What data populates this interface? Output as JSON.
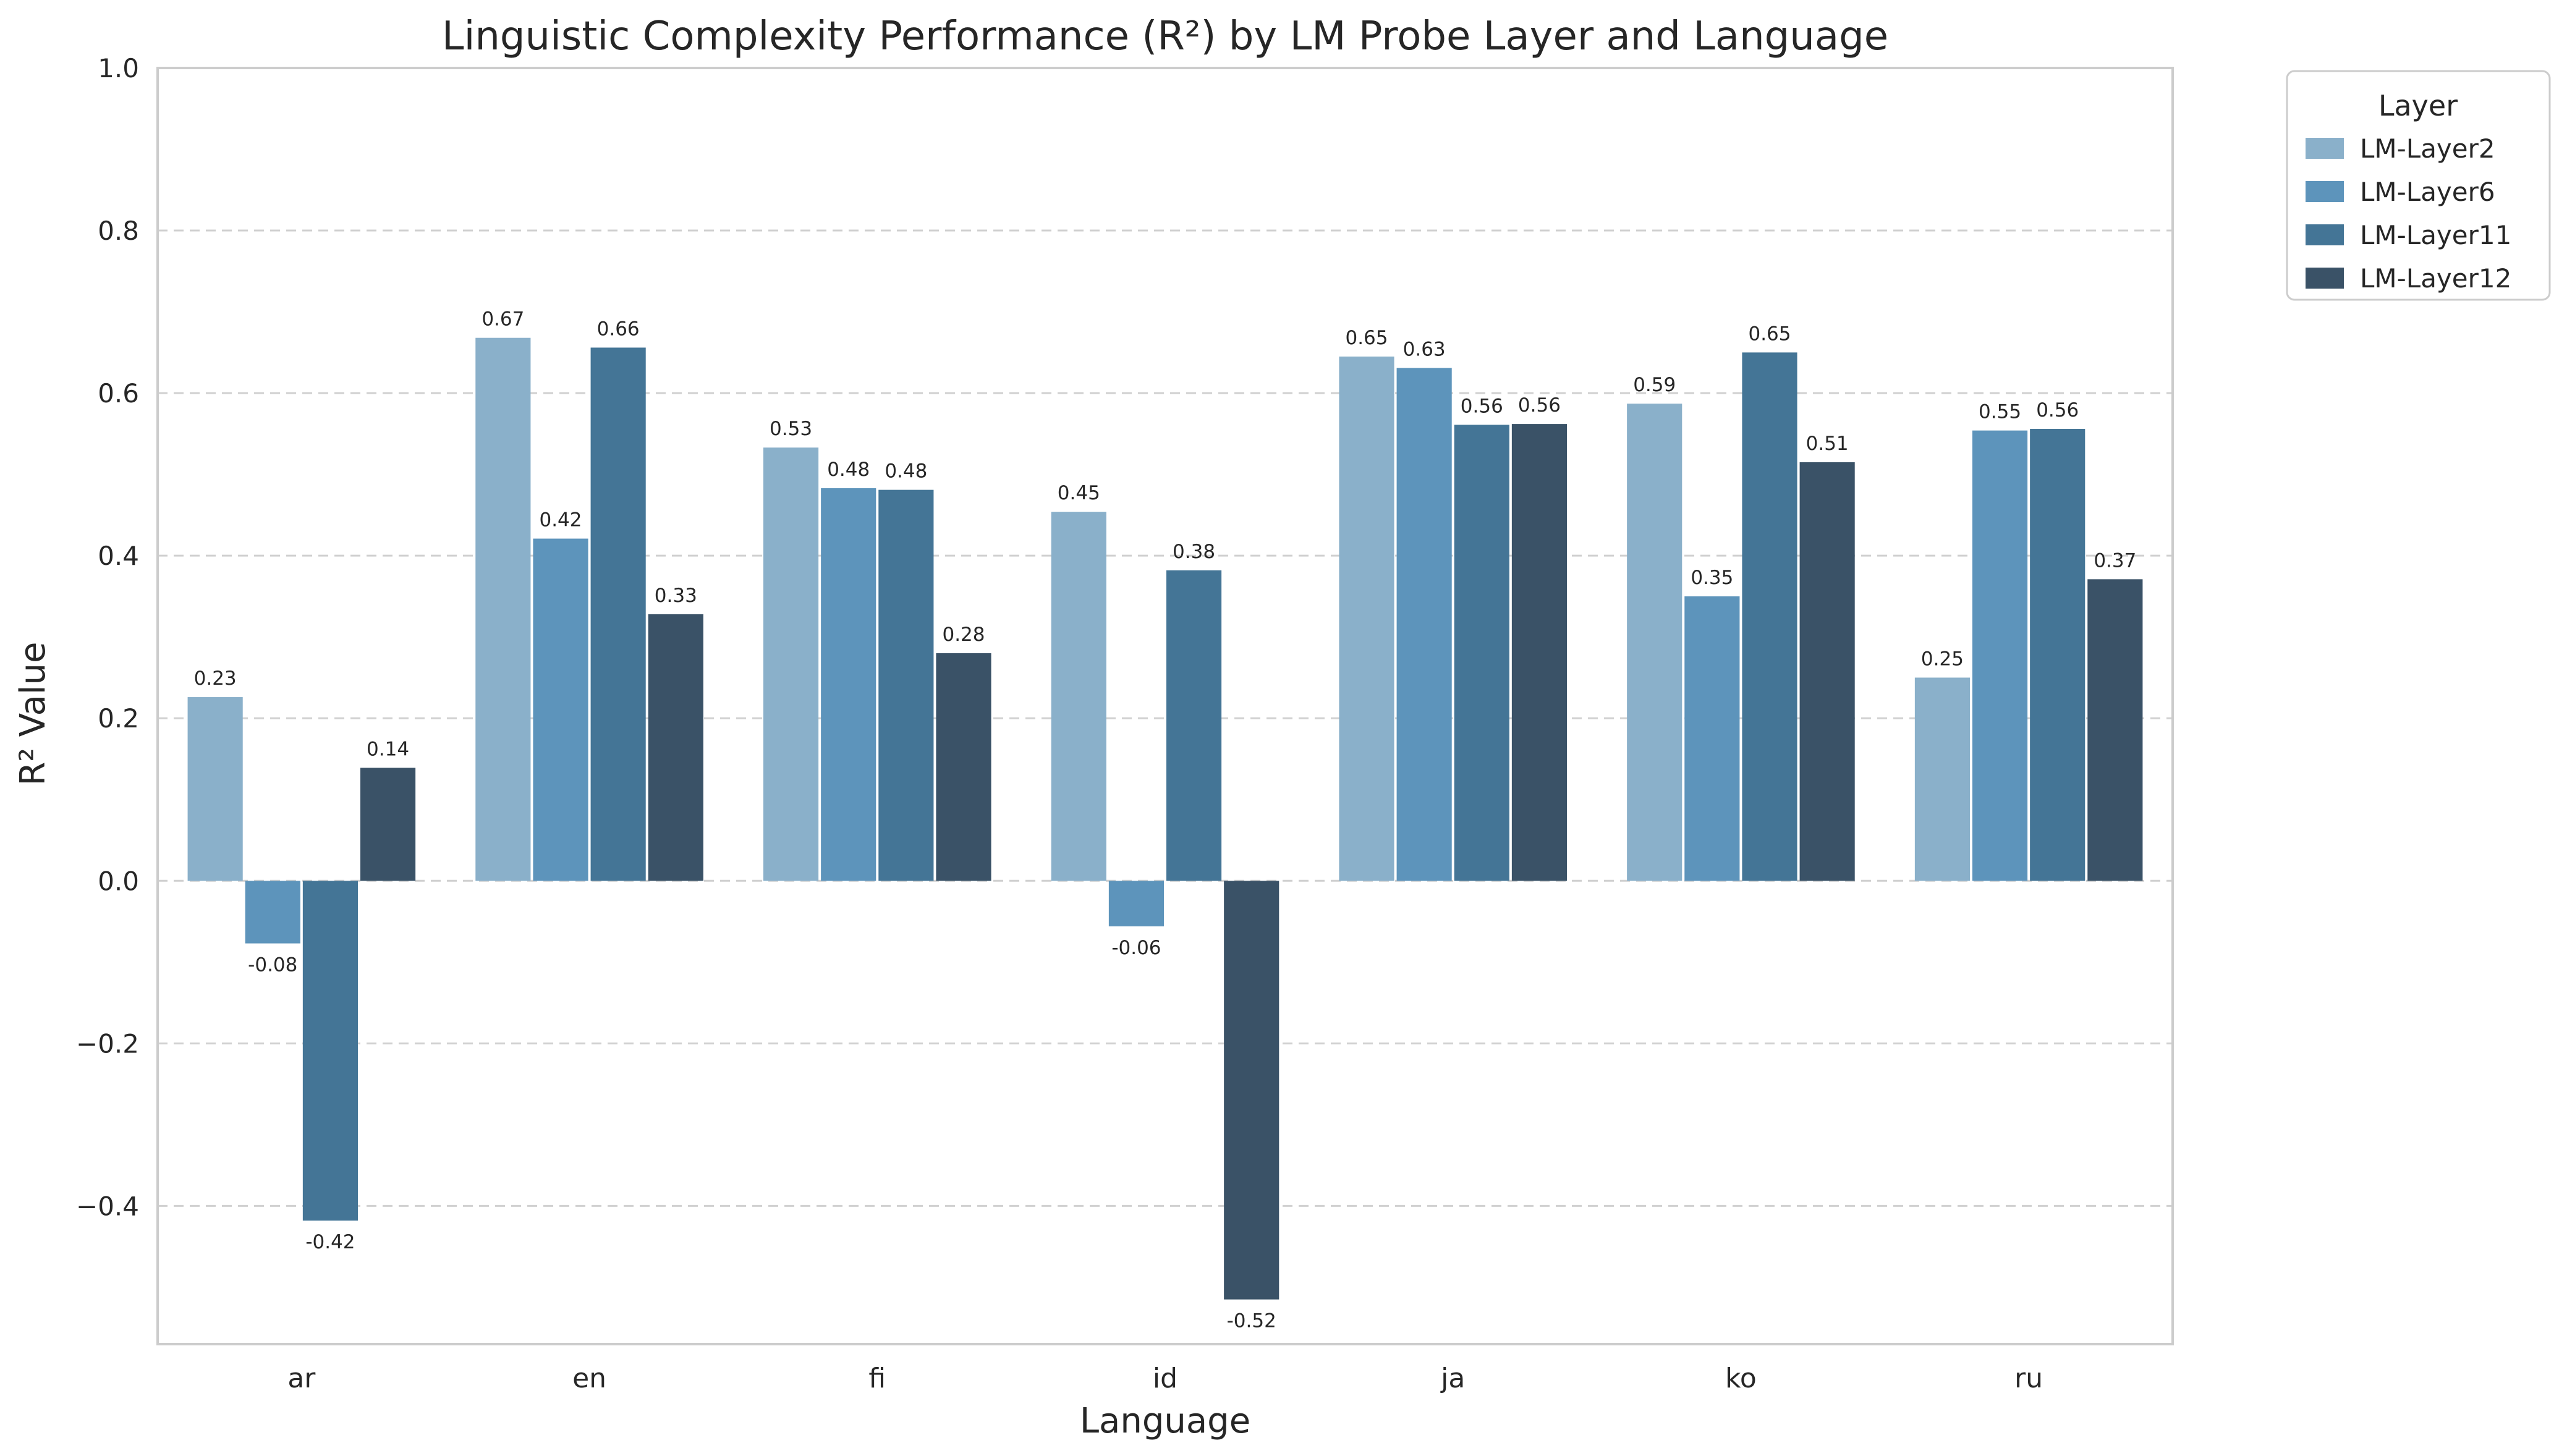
{
  "chart_data": {
    "type": "bar",
    "title": "Linguistic Complexity Performance (R²) by LM Probe Layer and Language",
    "xlabel": "Language",
    "ylabel": "R² Value",
    "ylim": [
      -0.57,
      1.0
    ],
    "yticks": [
      -0.4,
      -0.2,
      0.0,
      0.2,
      0.4,
      0.6,
      0.8,
      1.0
    ],
    "ytick_labels": [
      "−0.4",
      "−0.2",
      "0.0",
      "0.2",
      "0.4",
      "0.6",
      "0.8",
      "1.0"
    ],
    "grid": "horizontal-dashed",
    "legend_title": "Layer",
    "legend_position": "outside-top-right",
    "categories": [
      "ar",
      "en",
      "fi",
      "id",
      "ja",
      "ko",
      "ru"
    ],
    "series": [
      {
        "name": "LM-Layer2",
        "color": "#8ab0ca",
        "values": [
          0.226,
          0.668,
          0.533,
          0.454,
          0.645,
          0.587,
          0.25
        ],
        "labels": [
          "0.23",
          "0.67",
          "0.53",
          "0.45",
          "0.65",
          "0.59",
          "0.25"
        ]
      },
      {
        "name": "LM-Layer6",
        "color": "#5d94bb",
        "values": [
          -0.077,
          0.421,
          0.483,
          -0.056,
          0.631,
          0.35,
          0.554
        ],
        "labels": [
          "-0.08",
          "0.42",
          "0.48",
          "-0.06",
          "0.63",
          "0.35",
          "0.55"
        ]
      },
      {
        "name": "LM-Layer11",
        "color": "#447596",
        "values": [
          -0.418,
          0.656,
          0.481,
          0.382,
          0.561,
          0.65,
          0.556
        ],
        "labels": [
          "-0.42",
          "0.66",
          "0.48",
          "0.38",
          "0.56",
          "0.65",
          "0.56"
        ]
      },
      {
        "name": "LM-Layer12",
        "color": "#3a5267",
        "values": [
          0.139,
          0.328,
          0.28,
          -0.515,
          0.562,
          0.515,
          0.371
        ],
        "labels": [
          "0.14",
          "0.33",
          "0.28",
          "-0.52",
          "0.56",
          "0.51",
          "0.37"
        ]
      }
    ]
  }
}
